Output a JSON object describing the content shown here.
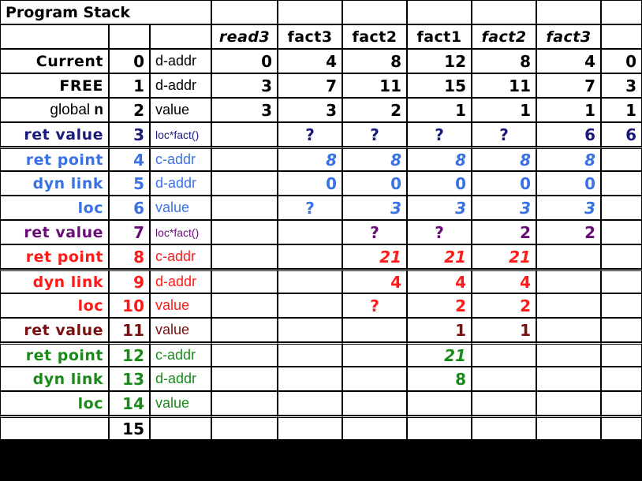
{
  "title": "Program  Stack",
  "columns": [
    "read3",
    "fact3",
    "fact2",
    "fact1",
    "fact2",
    "fact3"
  ],
  "column_italic": [
    true,
    false,
    false,
    false,
    true,
    true
  ],
  "rows": [
    {
      "label": "Current",
      "addr": "0",
      "unit": "d-addr",
      "cells": [
        "0",
        "4",
        "8",
        "12",
        "8",
        "4",
        "0"
      ],
      "color": "#000000"
    },
    {
      "label": "FREE",
      "addr": "1",
      "unit": "d-addr",
      "cells": [
        "3",
        "7",
        "11",
        "15",
        "11",
        "7",
        "3"
      ],
      "color": "#000000"
    },
    {
      "label": "global n",
      "addr": "2",
      "unit": "value",
      "cells": [
        "3",
        "3",
        "2",
        "1",
        "1",
        "1",
        "1"
      ],
      "color": "#000000"
    },
    {
      "label": "ret value",
      "addr": "3",
      "unit": "loc*fact()",
      "cells": [
        "",
        "?",
        "?",
        "?",
        "?",
        "6",
        "6"
      ],
      "color": "#1a1a7a"
    },
    {
      "label": "ret point",
      "addr": "4",
      "unit": "c-addr",
      "cells": [
        "",
        "8",
        "8",
        "8",
        "8",
        "8",
        ""
      ],
      "color": "#3a72e6"
    },
    {
      "label": "dyn link",
      "addr": "5",
      "unit": "d-addr",
      "cells": [
        "",
        "0",
        "0",
        "0",
        "0",
        "0",
        ""
      ],
      "color": "#3a72e6"
    },
    {
      "label": "loc",
      "addr": "6",
      "unit": "value",
      "cells": [
        "",
        "?",
        "3",
        "3",
        "3",
        "3",
        ""
      ],
      "color": "#3a72e6"
    },
    {
      "label": "ret value",
      "addr": "7",
      "unit": "loc*fact()",
      "cells": [
        "",
        "",
        "?",
        "?",
        "2",
        "2",
        ""
      ],
      "color": "#6a0c78"
    },
    {
      "label": "ret point",
      "addr": "8",
      "unit": "c-addr",
      "cells": [
        "",
        "",
        "21",
        "21",
        "21",
        "",
        ""
      ],
      "color": "#ff1a1a"
    },
    {
      "label": "dyn link",
      "addr": "9",
      "unit": "d-addr",
      "cells": [
        "",
        "",
        "4",
        "4",
        "4",
        "",
        ""
      ],
      "color": "#ff1a1a"
    },
    {
      "label": "loc",
      "addr": "10",
      "unit": "value",
      "cells": [
        "",
        "",
        "?",
        "2",
        "2",
        "",
        ""
      ],
      "color": "#ff1a1a"
    },
    {
      "label": "ret value",
      "addr": "11",
      "unit": "value",
      "cells": [
        "",
        "",
        "",
        "1",
        "1",
        "",
        ""
      ],
      "color": "#7a0f0f"
    },
    {
      "label": "ret point",
      "addr": "12",
      "unit": "c-addr",
      "cells": [
        "",
        "",
        "",
        "21",
        "",
        "",
        ""
      ],
      "color": "#1a8a1a"
    },
    {
      "label": "dyn link",
      "addr": "13",
      "unit": "d-addr",
      "cells": [
        "",
        "",
        "",
        "8",
        "",
        "",
        ""
      ],
      "color": "#1a8a1a"
    },
    {
      "label": "loc",
      "addr": "14",
      "unit": "value",
      "cells": [
        "",
        "",
        "",
        "",
        "",
        "",
        ""
      ],
      "color": "#1a8a1a"
    },
    {
      "label": "",
      "addr": "15",
      "unit": "",
      "cells": [
        "",
        "",
        "",
        "",
        "",
        "",
        ""
      ],
      "color": "#000000"
    }
  ]
}
